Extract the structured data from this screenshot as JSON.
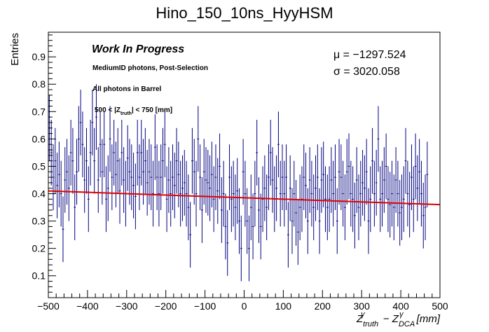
{
  "chart_data": {
    "type": "histogram",
    "title": "Hino_150_10ns_HyyHSM",
    "ylabel": "Entries",
    "xlabel": "Z^γ_truth − Z^γ_DCA [mm]",
    "xlabel_parts": {
      "z1": "Z",
      "sup1": "γ",
      "sub1": "truth",
      "minus": " − ",
      "z2": "Z",
      "sup2": "γ",
      "sub2": "DCA",
      "unit": "[mm]"
    },
    "xlim": [
      -500,
      500
    ],
    "ylim": [
      0.02,
      0.99
    ],
    "x_ticks": [
      -500,
      -400,
      -300,
      -200,
      -100,
      0,
      100,
      200,
      300,
      400,
      500
    ],
    "y_ticks": [
      0.1,
      0.2,
      0.3,
      0.4,
      0.5,
      0.6,
      0.7,
      0.8,
      0.9
    ],
    "x_tick_labels": [
      "−500",
      "−400",
      "−300",
      "−200",
      "−100",
      "0",
      "100",
      "200",
      "300",
      "400",
      "500"
    ],
    "y_tick_labels": [
      "0.1",
      "0.2",
      "0.3",
      "0.4",
      "0.5",
      "0.6",
      "0.7",
      "0.8",
      "0.9"
    ],
    "bin_width": 5,
    "bin_start": -500,
    "values": [
      0.64,
      0.55,
      0.46,
      0.52,
      0.43,
      0.47,
      0.4,
      0.27,
      0.45,
      0.48,
      0.42,
      0.55,
      0.52,
      0.35,
      0.48,
      0.6,
      0.66,
      0.58,
      0.45,
      0.52,
      0.38,
      0.55,
      0.66,
      0.52,
      0.68,
      0.45,
      0.58,
      0.48,
      0.58,
      0.38,
      0.42,
      0.6,
      0.46,
      0.55,
      0.47,
      0.52,
      0.41,
      0.55,
      0.45,
      0.4,
      0.53,
      0.48,
      0.46,
      0.43,
      0.39,
      0.55,
      0.46,
      0.55,
      0.48,
      0.52,
      0.44,
      0.48,
      0.46,
      0.4,
      0.57,
      0.46,
      0.4,
      0.46,
      0.52,
      0.58,
      0.38,
      0.45,
      0.4,
      0.46,
      0.43,
      0.52,
      0.47,
      0.4,
      0.42,
      0.44,
      0.4,
      0.35,
      0.25,
      0.52,
      0.48,
      0.4,
      0.6,
      0.46,
      0.34,
      0.48,
      0.45,
      0.44,
      0.42,
      0.47,
      0.38,
      0.46,
      0.41,
      0.5,
      0.34,
      0.4,
      0.28,
      0.22,
      0.46,
      0.38,
      0.4,
      0.35,
      0.41,
      0.3,
      0.2,
      0.48,
      0.4,
      0.3,
      0.2,
      0.35,
      0.28,
      0.4,
      0.55,
      0.34,
      0.28,
      0.38,
      0.42,
      0.35,
      0.46,
      0.55,
      0.45,
      0.38,
      0.42,
      0.58,
      0.4,
      0.46,
      0.4,
      0.46,
      0.25,
      0.42,
      0.3,
      0.4,
      0.33,
      0.26,
      0.35,
      0.38,
      0.46,
      0.43,
      0.3,
      0.45,
      0.4,
      0.35,
      0.42,
      0.46,
      0.3,
      0.45,
      0.47,
      0.38,
      0.35,
      0.38,
      0.45,
      0.4,
      0.46,
      0.3,
      0.48,
      0.46,
      0.4,
      0.35,
      0.48,
      0.5,
      0.4,
      0.38,
      0.32,
      0.45,
      0.35,
      0.4,
      0.44,
      0.42,
      0.48,
      0.3,
      0.38,
      0.52,
      0.4,
      0.44,
      0.6,
      0.38,
      0.4,
      0.45,
      0.5,
      0.38,
      0.36,
      0.4,
      0.35,
      0.45,
      0.4,
      0.33,
      0.35,
      0.38,
      0.52,
      0.4,
      0.36,
      0.46,
      0.38,
      0.5,
      0.42,
      0.48,
      0.4,
      0.32,
      0.35,
      0.47
    ],
    "errors": 0.12,
    "fit": {
      "x": [
        -500,
        500
      ],
      "y": [
        0.41,
        0.36
      ]
    },
    "colors": {
      "hist": "#000080",
      "fit": "#e00000",
      "axis": "#000000"
    }
  },
  "annotations": {
    "wip": "Work In Progress",
    "selection": "MediumID photons, Post-Selection",
    "region": "All photons in Barrel",
    "cut_prefix": "500 < |Z",
    "cut_sub": "truth",
    "cut_suffix": "| < 750 [mm]",
    "mu": "μ = −1297.524",
    "sigma": "σ = 3020.058"
  }
}
